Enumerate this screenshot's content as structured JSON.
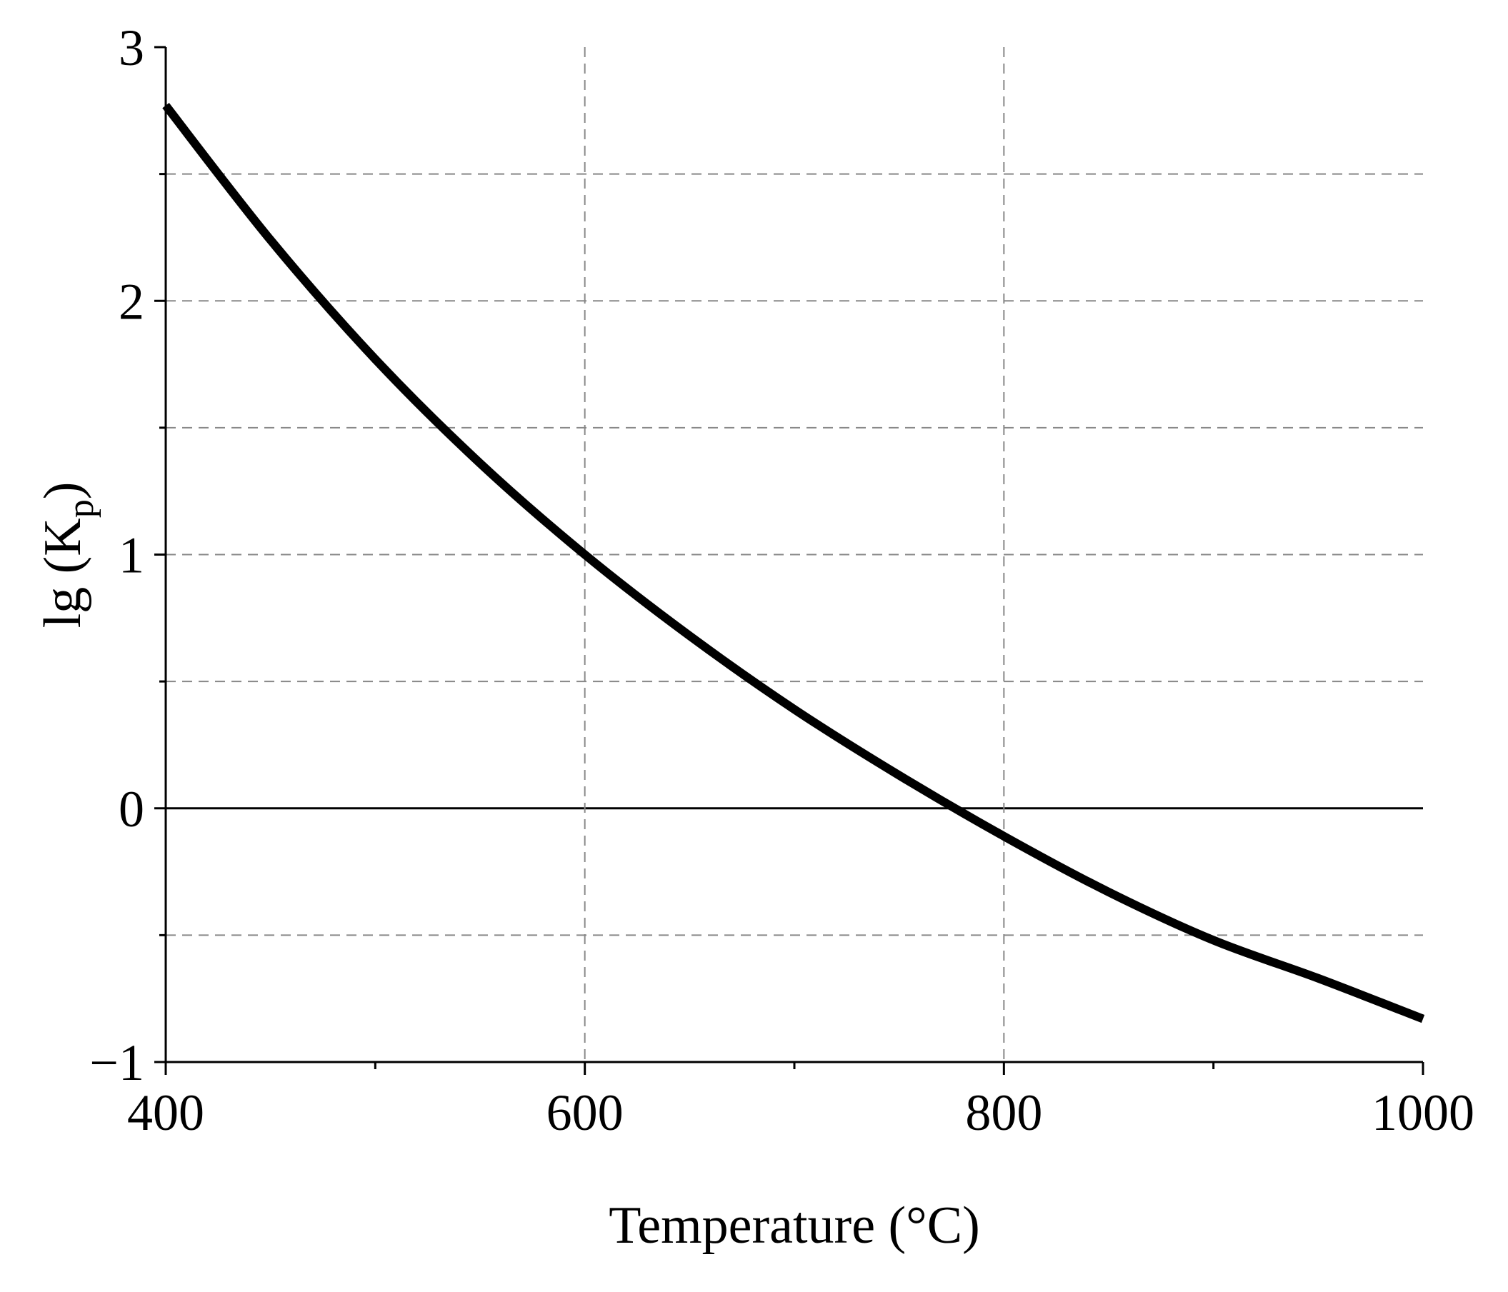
{
  "chart_data": {
    "type": "line",
    "x_label": "Temperature (°C)",
    "y_label": [
      "lg (K",
      "p",
      ")"
    ],
    "x": [
      400,
      450,
      500,
      550,
      600,
      650,
      700,
      750,
      800,
      850,
      900,
      950,
      1000
    ],
    "series": [
      {
        "color": "#000000",
        "values": [
          2.77,
          2.24,
          1.77,
          1.36,
          1.0,
          0.68,
          0.39,
          0.13,
          -0.11,
          -0.33,
          -0.52,
          -0.67,
          -0.83
        ]
      }
    ],
    "xlim": [
      400,
      1000
    ],
    "xticks": [
      400,
      600,
      800,
      1000
    ],
    "x_minor_ticks": [
      500,
      700,
      900
    ],
    "ylim": [
      -1,
      3
    ],
    "yticks": [
      {
        "value": -1,
        "label": "−1"
      },
      0,
      1,
      2,
      3
    ],
    "y_minor_ticks": [
      -0.5,
      0.5,
      1.5,
      2.5
    ],
    "grid": true
  }
}
